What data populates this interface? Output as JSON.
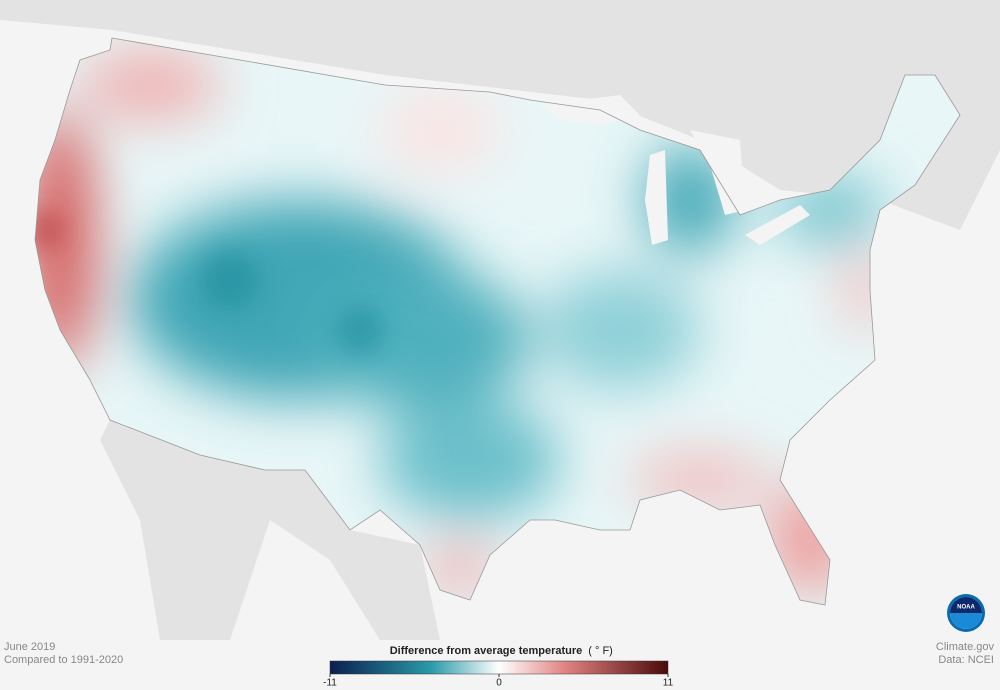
{
  "header": {
    "date": "June 2019",
    "baseline": "Compared to 1991-2020"
  },
  "legend": {
    "title": "Difference from average temperature",
    "unit": "( ° F)",
    "range": [
      -11,
      11
    ],
    "ticks": [
      -11,
      0,
      11
    ]
  },
  "credits": {
    "site": "Climate.gov",
    "source": "Data: NCEI",
    "logo": "NOAA"
  }
}
